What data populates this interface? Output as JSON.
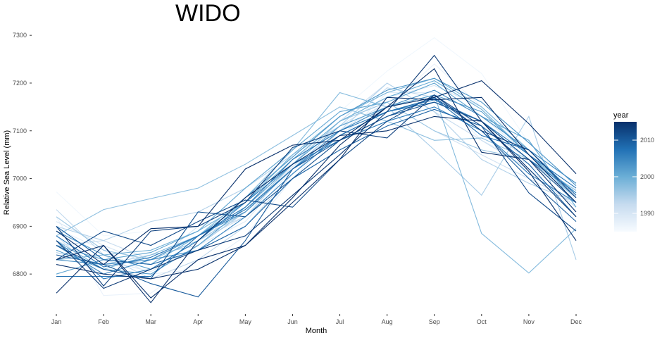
{
  "chart_data": {
    "type": "line",
    "title": "WIDO",
    "xlabel": "Month",
    "ylabel": "Relative Sea Level (mm)",
    "categories": [
      "Jan",
      "Feb",
      "Mar",
      "Apr",
      "May",
      "Jun",
      "Jul",
      "Aug",
      "Sep",
      "Oct",
      "Nov",
      "Dec"
    ],
    "yticks": [
      6800,
      6900,
      7000,
      7100,
      7200,
      7300
    ],
    "ylim": [
      6725,
      7315
    ],
    "grid": false,
    "legend": {
      "title": "year",
      "position": "right",
      "ticks": [
        1990,
        2000,
        2010
      ],
      "range": [
        1985,
        2015
      ],
      "color_low": "#f7fbff",
      "color_high": "#08306b"
    },
    "series": [
      {
        "year": 1986,
        "values": [
          6972,
          6880,
          6890,
          6900,
          6960,
          7050,
          7140,
          7225,
          7295,
          7220,
          7075,
          6975
        ]
      },
      {
        "year": 1987,
        "values": [
          6920,
          6755,
          6760,
          6830,
          6900,
          7000,
          7100,
          7150,
          7240,
          7150,
          7050,
          6955
        ]
      },
      {
        "year": 1988,
        "values": [
          6895,
          6850,
          6800,
          6810,
          6880,
          7000,
          7080,
          7180,
          7180,
          7080,
          7030,
          6960
        ]
      },
      {
        "year": 1989,
        "values": [
          6870,
          6830,
          6805,
          6860,
          6910,
          7020,
          7090,
          7160,
          7200,
          7130,
          7050,
          6980
        ]
      },
      {
        "year": 1990,
        "values": [
          6910,
          6860,
          6820,
          6900,
          6930,
          7040,
          7110,
          7170,
          7195,
          7150,
          7060,
          6990
        ]
      },
      {
        "year": 1991,
        "values": [
          6880,
          6790,
          6810,
          6870,
          6920,
          7025,
          7100,
          7160,
          7100,
          7050,
          7000,
          6950
        ]
      },
      {
        "year": 1992,
        "values": [
          6860,
          6870,
          6830,
          6880,
          6920,
          7030,
          7120,
          7200,
          7140,
          7080,
          7020,
          6940
        ]
      },
      {
        "year": 1993,
        "values": [
          6935,
          6840,
          6790,
          6830,
          6900,
          7010,
          7100,
          7190,
          7170,
          7110,
          7040,
          6970
        ]
      },
      {
        "year": 1994,
        "values": [
          6900,
          6870,
          6910,
          6930,
          6980,
          7050,
          7110,
          7200,
          7140,
          7040,
          6990,
          6950
        ]
      },
      {
        "year": 1995,
        "values": [
          6845,
          6820,
          6840,
          6860,
          6930,
          7020,
          7110,
          7150,
          7060,
          6965,
          7130,
          6830
        ]
      },
      {
        "year": 1996,
        "values": [
          6920,
          6850,
          6830,
          6870,
          6930,
          7030,
          7120,
          7160,
          7100,
          7060,
          7040,
          6960
        ]
      },
      {
        "year": 1997,
        "values": [
          6880,
          6935,
          6958,
          6980,
          7030,
          7090,
          7150,
          7120,
          7080,
          7085,
          7040,
          6975
        ]
      },
      {
        "year": 1998,
        "values": [
          6870,
          6810,
          6840,
          6880,
          6960,
          7060,
          7180,
          7150,
          7175,
          6885,
          6802,
          6895
        ]
      },
      {
        "year": 1999,
        "values": [
          6830,
          6840,
          6850,
          6890,
          6950,
          7050,
          7130,
          7180,
          7210,
          7150,
          7060,
          6990
        ]
      },
      {
        "year": 2000,
        "values": [
          6860,
          6830,
          6820,
          6880,
          6950,
          7040,
          7120,
          7170,
          7205,
          7145,
          7050,
          6970
        ]
      },
      {
        "year": 2001,
        "values": [
          6800,
          6830,
          6845,
          6890,
          6980,
          7060,
          7140,
          7160,
          7200,
          7130,
          7080,
          6940
        ]
      },
      {
        "year": 2002,
        "values": [
          6850,
          6810,
          6800,
          6860,
          6940,
          7030,
          7110,
          7150,
          7175,
          7140,
          7050,
          6960
        ]
      },
      {
        "year": 2003,
        "values": [
          6890,
          6840,
          6810,
          6870,
          6960,
          7045,
          7130,
          7185,
          7210,
          7160,
          7075,
          6985
        ]
      },
      {
        "year": 2004,
        "values": [
          6830,
          6820,
          6830,
          6880,
          6930,
          7020,
          7100,
          7150,
          7185,
          7130,
          7060,
          6990
        ]
      },
      {
        "year": 2005,
        "values": [
          6860,
          6800,
          6830,
          6850,
          6920,
          7010,
          7090,
          7140,
          7165,
          7120,
          7040,
          6970
        ]
      },
      {
        "year": 2006,
        "values": [
          6870,
          6790,
          6810,
          6870,
          6950,
          7030,
          7080,
          7120,
          7150,
          7100,
          7010,
          6950
        ]
      },
      {
        "year": 2007,
        "values": [
          6880,
          6815,
          6835,
          6880,
          6940,
          7040,
          7100,
          7140,
          7160,
          7120,
          7050,
          6980
        ]
      },
      {
        "year": 2008,
        "values": [
          6795,
          6795,
          6795,
          6880,
          6935,
          7020,
          7090,
          7140,
          7168,
          7090,
          7060,
          6965
        ]
      },
      {
        "year": 2009,
        "values": [
          6900,
          6830,
          6820,
          6850,
          6900,
          7000,
          7060,
          7110,
          7145,
          7110,
          7030,
          6920
        ]
      },
      {
        "year": 2010,
        "values": [
          6840,
          6820,
          6780,
          6752,
          6870,
          7020,
          7080,
          7130,
          7170,
          7100,
          7000,
          6910
        ]
      },
      {
        "year": 2011,
        "values": [
          6860,
          6810,
          6790,
          6930,
          6920,
          7000,
          7080,
          7130,
          7160,
          7120,
          7040,
          6950
        ]
      },
      {
        "year": 2012,
        "values": [
          6830,
          6890,
          6860,
          6910,
          6955,
          6940,
          7040,
          7120,
          7175,
          7110,
          6970,
          6890
        ]
      },
      {
        "year": 2013,
        "values": [
          6900,
          6775,
          6890,
          6900,
          6950,
          7065,
          7100,
          7085,
          7175,
          7100,
          7060,
          6960
        ]
      },
      {
        "year": 2014,
        "values": [
          6870,
          6770,
          6810,
          6850,
          6880,
          6965,
          7050,
          7140,
          7258,
          7120,
          7020,
          6920
        ]
      },
      {
        "year": 2015,
        "values": [
          6820,
          6800,
          6790,
          6810,
          6860,
          6960,
          7070,
          7150,
          7230,
          7055,
          7040,
          6930
        ]
      },
      {
        "year": 2016,
        "values": [
          6830,
          6860,
          6750,
          6830,
          6860,
          6950,
          7040,
          7170,
          7165,
          7170,
          7050,
          6950
        ]
      },
      {
        "year": 2017,
        "values": [
          6760,
          6860,
          6740,
          6870,
          6960,
          7030,
          7090,
          7100,
          7130,
          7120,
          7015,
          6870
        ]
      },
      {
        "year": 2018,
        "values": [
          6890,
          6820,
          6895,
          6900,
          7020,
          7070,
          7080,
          7150,
          7170,
          7205,
          7115,
          7010
        ]
      }
    ]
  }
}
